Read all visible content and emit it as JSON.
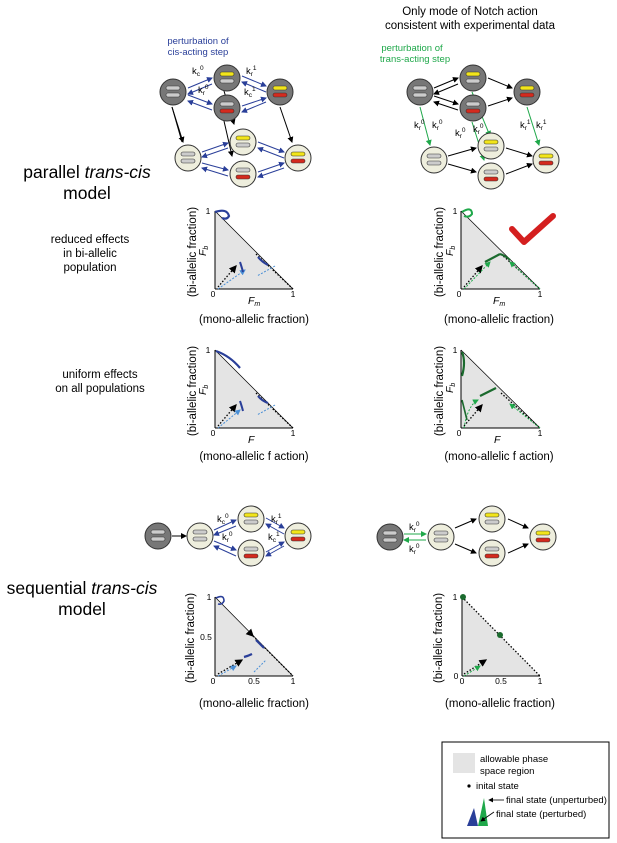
{
  "header": {
    "right_title_line1": "Only mode of Notch action",
    "right_title_line2": "consistent with experimental data"
  },
  "perturbation_labels": {
    "cis_line1": "perturbation of",
    "cis_line2": "cis-acting step",
    "trans_line1": "perturbation of",
    "trans_line2": "trans-acting step"
  },
  "rate_labels": {
    "kc0": "kc0",
    "kr0": "kr0",
    "kc1": "kc1",
    "kr1": "kr1",
    "k_letter": "k",
    "sub_c": "c",
    "sub_r": "r",
    "sup_0": "0",
    "sup_1": "1"
  },
  "models": {
    "parallel_line1": "parallel trans-cis",
    "parallel_line2": "model",
    "sequential_line1": "sequential trans-cis",
    "sequential_line2": "model"
  },
  "row_labels": {
    "reduced_line1": "reduced effects",
    "reduced_line2": "in bi-allelic",
    "reduced_line3": "population",
    "uniform_line1": "uniform effects",
    "uniform_line2": "on all populations"
  },
  "axes": {
    "y_label": "(bi-allelic fraction)",
    "x_label_a": "(mono-allelic fraction)",
    "x_label_b": "(mono-allelic f action)",
    "fb_symbol": "F",
    "fb_sub": "b",
    "fm_symbol": "F",
    "fm_sub": "m",
    "f_symbol": "F",
    "tick_0": "0",
    "tick_1": "1",
    "tick_05": "0.5"
  },
  "legend": {
    "region_line1": "allowable phase",
    "region_line2": "space region",
    "initial": "inital state",
    "final_unperturbed": "final state (unperturbed)",
    "final_perturbed": "final state (perturbed)"
  },
  "colors": {
    "cis_blue": "#2a3f99",
    "trans_green": "#1fa84a",
    "dark_green": "#1b6b2e",
    "light_blue": "#4a8fd6",
    "yellow_allele": "#f2e51a",
    "red_allele": "#d42a1e",
    "gray_allele": "#9a9a9a",
    "node_dark": "#777777",
    "node_light": "#eeeedd",
    "region_gray": "#e4e4e4",
    "check_red": "#d41f1f"
  }
}
